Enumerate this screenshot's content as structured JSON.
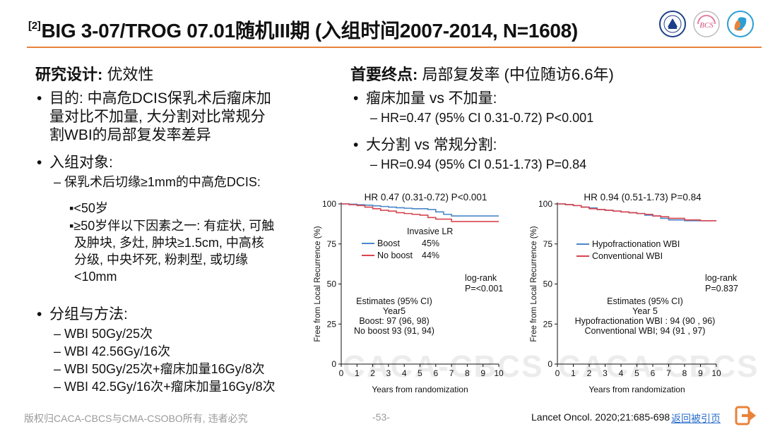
{
  "header": {
    "ref": "[2]",
    "title": "BIG 3-07/TROG 07.01随机III期 (入组时间2007-2014, N=1608)"
  },
  "logos": [
    "university-seal-logo",
    "bcs-logo",
    "csobo-logo"
  ],
  "left": {
    "heading_bold": "研究设计:",
    "heading_rest": " 优效性",
    "purpose_line1": "目的: 中高危DCIS保乳术后瘤床加",
    "purpose_line2": "量对比不加量, 大分割对比常规分",
    "purpose_line3": "割WBI的局部复发率差异",
    "subjects": "入组对象:",
    "subjects_sub": "保乳术后切缘≥1mm的中高危DCIS:",
    "criteria1": "<50岁",
    "criteria2_line1": "≥50岁伴以下因素之一: 有症状, 可触",
    "criteria2_line2": "及肿块, 多灶, 肿块≥1.5cm, 中高核",
    "criteria2_line3": "分级, 中央坏死, 粉刺型, 或切缘",
    "criteria2_line4": "<10mm",
    "groups": "分组与方法:",
    "arms": [
      "WBI 50Gy/25次",
      "WBI 42.56Gy/16次",
      "WBI 50Gy/25次+瘤床加量16Gy/8次",
      "WBI 42.5Gy/16次+瘤床加量16Gy/8次"
    ]
  },
  "right": {
    "heading_bold": "首要终点:",
    "heading_rest": " 局部复发率 (中位随访6.6年)",
    "comp1": "瘤床加量 vs 不加量:",
    "comp1_hr": "HR=0.47 (95% CI 0.31-0.72) P<0.001",
    "comp2": "大分割 vs 常规分割:",
    "comp2_hr": "HR=0.94 (95% CI 0.51-1.73) P=0.84"
  },
  "chart_data": [
    {
      "type": "line",
      "title": "HR 0.47 (0.31-0.72) P<0.001",
      "xlabel": "Years from randomization",
      "ylabel": "Free from Local Recurrence (%)",
      "xlim": [
        0,
        10
      ],
      "ylim": [
        0,
        100
      ],
      "xticks": [
        0,
        1,
        2,
        3,
        4,
        5,
        6,
        7,
        8,
        9,
        10
      ],
      "yticks": [
        0,
        25,
        50,
        75,
        100
      ],
      "legend_title": "Invasive LR",
      "series": [
        {
          "name": "Boost",
          "pct": "45%",
          "color": "#4a86c8",
          "x": [
            0,
            0.5,
            1,
            1.5,
            2,
            2.5,
            3,
            3.5,
            4,
            4.5,
            5,
            5.5,
            6,
            6.5,
            7,
            8,
            9,
            10
          ],
          "y": [
            100,
            99.8,
            99.5,
            99.2,
            98.8,
            98.4,
            98,
            97.6,
            97.3,
            97,
            97,
            96.5,
            95,
            93.5,
            92.5,
            92.5,
            92.5,
            92.5
          ]
        },
        {
          "name": "No boost",
          "pct": "44%",
          "color": "#d9454f",
          "x": [
            0,
            0.5,
            1,
            1.5,
            2,
            2.5,
            3,
            3.5,
            4,
            4.5,
            5,
            5.5,
            6,
            7,
            8,
            9,
            10
          ],
          "y": [
            100,
            99.5,
            99,
            98,
            97,
            96,
            95.5,
            94.5,
            94,
            93.5,
            93,
            91.5,
            90.5,
            89,
            89,
            89,
            89
          ]
        }
      ],
      "logrank": [
        "log-rank",
        "P=<0.001"
      ],
      "estimates": [
        "Estimates (95% CI)",
        "Year5",
        "Boost: 97 (96, 98)",
        "No boost 93 (91, 94)"
      ]
    },
    {
      "type": "line",
      "title": "HR 0.94 (0.51-1.73) P=0.84",
      "xlabel": "Years from randomization",
      "ylabel": "Free from Local Recurrence (%)",
      "xlim": [
        0,
        10
      ],
      "ylim": [
        0,
        100
      ],
      "xticks": [
        0,
        1,
        2,
        3,
        4,
        5,
        6,
        7,
        8,
        9,
        10
      ],
      "yticks": [
        0,
        25,
        50,
        75,
        100
      ],
      "legend_title": "",
      "series": [
        {
          "name": "Hypofractionation WBI",
          "pct": "",
          "color": "#4a86c8",
          "x": [
            0,
            0.5,
            1,
            1.5,
            2,
            2.5,
            3,
            3.5,
            4,
            4.5,
            5,
            5.5,
            6,
            6.5,
            7,
            8,
            9,
            10
          ],
          "y": [
            100,
            99.5,
            99,
            98,
            97.5,
            96.5,
            96,
            95.5,
            95,
            94.5,
            94,
            93,
            92.5,
            91,
            90,
            89.5,
            89.5,
            89.5
          ]
        },
        {
          "name": "Conventional WBI",
          "pct": "",
          "color": "#d9454f",
          "x": [
            0,
            0.5,
            1,
            1.5,
            2,
            2.5,
            3,
            3.5,
            4,
            4.5,
            5,
            5.5,
            6,
            6.5,
            7,
            8,
            9,
            10
          ],
          "y": [
            100,
            99.6,
            99,
            98,
            97,
            96.5,
            96,
            95.5,
            95,
            94.5,
            94,
            93.5,
            92.5,
            92,
            91,
            90,
            89.5,
            89.5
          ]
        }
      ],
      "logrank": [
        "log-rank",
        "P=0.837"
      ],
      "estimates": [
        "Estimates (95% CI)",
        "Year 5",
        "Hypofractionation WBI : 94 (90 , 96)",
        "Conventional WBI; 94 (91 , 97)"
      ]
    }
  ],
  "watermark": "CACA-CBCS",
  "footer": {
    "copyright": "版权归CACA-CBCS与CMA-CSOBO所有, 违者必究",
    "page": "-53-",
    "citation": "Lancet Oncol. 2020;21:685-698",
    "back_link": "返回被引页",
    "back_icon": "exit-arrow-icon",
    "accent": "#e9823a"
  }
}
